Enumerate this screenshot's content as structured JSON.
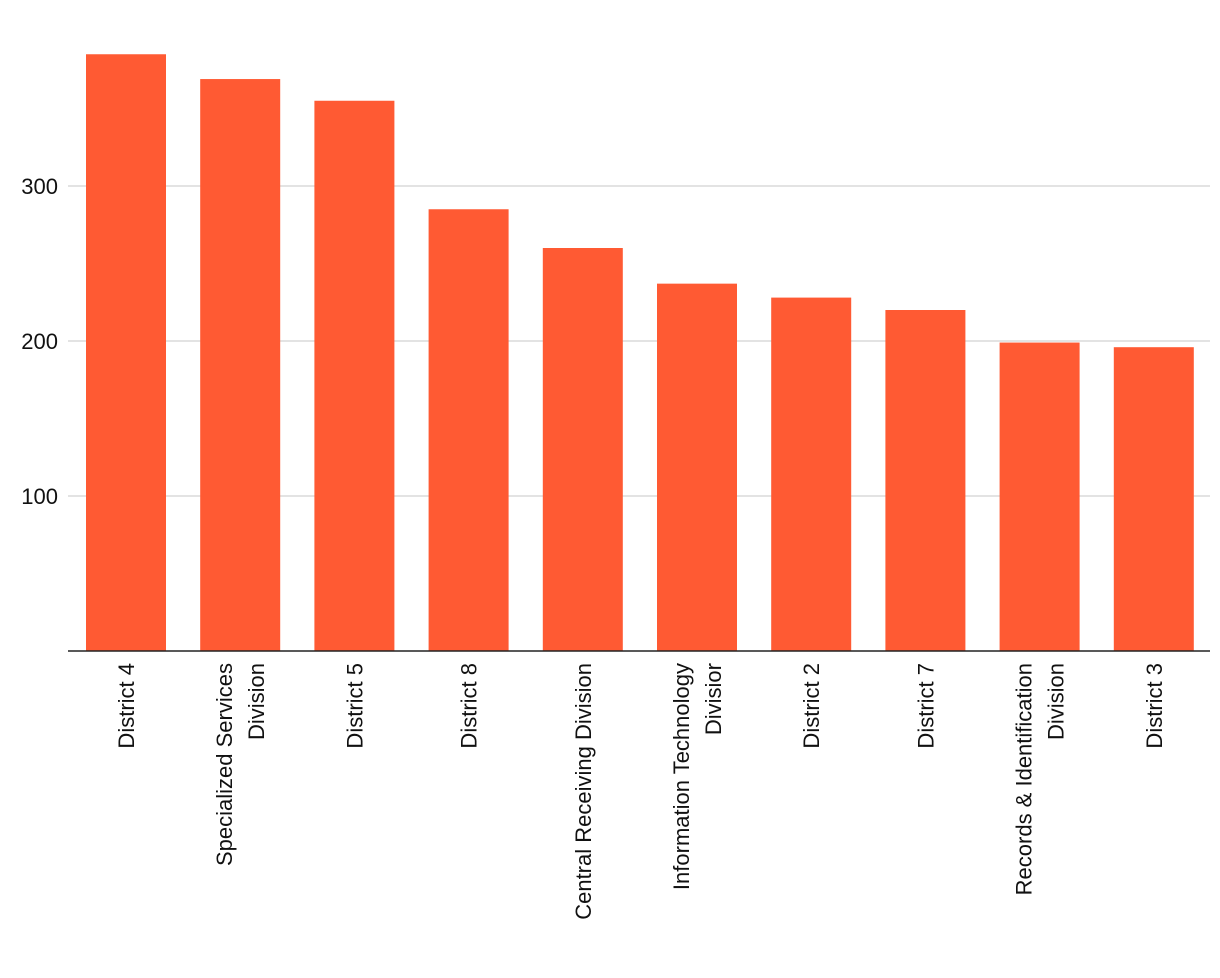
{
  "chart_data": {
    "type": "bar",
    "title": "",
    "xlabel": "",
    "ylabel": "",
    "categories": [
      [
        "District 4"
      ],
      [
        "Specialized Services",
        "Division"
      ],
      [
        "District 5"
      ],
      [
        "District 8"
      ],
      [
        "Central Receiving Division"
      ],
      [
        "Information Technology",
        "Divisior"
      ],
      [
        "District 2"
      ],
      [
        "District 7"
      ],
      [
        "Records & Identification",
        "Division"
      ],
      [
        "District 3"
      ]
    ],
    "values": [
      385,
      369,
      355,
      285,
      260,
      237,
      228,
      220,
      199,
      196
    ],
    "ylim": [
      0,
      385
    ],
    "yticks": [
      100,
      200,
      300
    ],
    "grid": true,
    "legend": "none",
    "colors": {
      "bar": "#ff5a33",
      "grid": "#e3e3e3",
      "axis": "#222222",
      "text": "#111111"
    }
  }
}
